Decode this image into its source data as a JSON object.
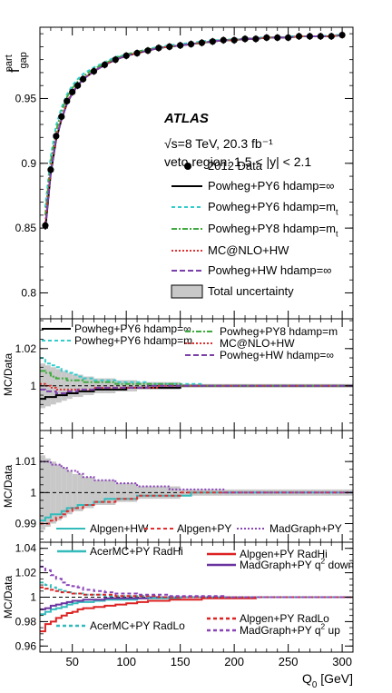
{
  "chart_data": [
    {
      "type": "line",
      "ylabel": "f",
      "ylabel_sup": "part",
      "ylabel_sub": "gap",
      "xlim": [
        20,
        310
      ],
      "ylim": [
        0.78,
        1.005
      ],
      "yticks": [
        "0.8",
        "0.85",
        "0.9",
        "0.95"
      ],
      "atlas_label": "ATLAS",
      "energy_label": "√s=8 TeV, 20.3 fb⁻¹",
      "region_label": "veto region: 1.5 < |y| < 2.1",
      "legend": [
        "2012 Data",
        "Powheg+PY6 hdamp=∞",
        "Powheg+PY6 hdamp=m",
        "Powheg+PY8 hdamp=m",
        "MC@NLO+HW",
        "Powheg+HW hdamp=∞",
        "Total uncertainty"
      ],
      "legend_subscript": "t",
      "x": [
        25,
        30,
        35,
        40,
        45,
        50,
        55,
        60,
        70,
        80,
        90,
        100,
        110,
        120,
        130,
        140,
        150,
        160,
        170,
        180,
        190,
        200,
        210,
        220,
        230,
        240,
        250,
        260,
        270,
        280,
        290,
        300
      ],
      "series": [
        {
          "name": "2012 Data",
          "color": "#000000",
          "values": [
            0.852,
            0.895,
            0.921,
            0.936,
            0.948,
            0.955,
            0.96,
            0.965,
            0.971,
            0.976,
            0.98,
            0.983,
            0.985,
            0.987,
            0.989,
            0.99,
            0.991,
            0.992,
            0.993,
            0.994,
            0.995,
            0.995,
            0.996,
            0.996,
            0.997,
            0.997,
            0.997,
            0.998,
            0.998,
            0.998,
            0.998,
            0.999
          ]
        },
        {
          "name": "Powheg+PY6 hdamp=∞",
          "color": "#000000",
          "values": [
            0.849,
            0.892,
            0.918,
            0.934,
            0.946,
            0.954,
            0.96,
            0.965,
            0.971,
            0.976,
            0.98,
            0.983,
            0.985,
            0.987,
            0.989,
            0.99,
            0.991,
            0.992,
            0.993,
            0.994,
            0.995,
            0.995,
            0.996,
            0.996,
            0.997,
            0.997,
            0.997,
            0.998,
            0.998,
            0.998,
            0.998,
            0.999
          ]
        },
        {
          "name": "Powheg+PY6 hdamp=m",
          "color": "#33cccc",
          "values": [
            0.866,
            0.905,
            0.929,
            0.943,
            0.953,
            0.96,
            0.965,
            0.969,
            0.974,
            0.978,
            0.982,
            0.984,
            0.986,
            0.988,
            0.99,
            0.991,
            0.992,
            0.993,
            0.994,
            0.995,
            0.995,
            0.996,
            0.996,
            0.997,
            0.997,
            0.997,
            0.998,
            0.998,
            0.998,
            0.998,
            0.999,
            0.999
          ]
        },
        {
          "name": "Powheg+PY8 hdamp=m",
          "color": "#3faa3f",
          "values": [
            0.86,
            0.901,
            0.925,
            0.94,
            0.951,
            0.958,
            0.963,
            0.967,
            0.973,
            0.977,
            0.981,
            0.984,
            0.986,
            0.988,
            0.989,
            0.99,
            0.991,
            0.992,
            0.993,
            0.994,
            0.995,
            0.995,
            0.996,
            0.996,
            0.997,
            0.997,
            0.997,
            0.998,
            0.998,
            0.998,
            0.998,
            0.999
          ]
        },
        {
          "name": "MC@NLO+HW",
          "color": "#e03030",
          "values": [
            0.854,
            0.895,
            0.92,
            0.935,
            0.947,
            0.955,
            0.96,
            0.965,
            0.971,
            0.976,
            0.98,
            0.983,
            0.985,
            0.987,
            0.989,
            0.99,
            0.991,
            0.992,
            0.993,
            0.994,
            0.995,
            0.995,
            0.996,
            0.996,
            0.997,
            0.997,
            0.997,
            0.998,
            0.998,
            0.998,
            0.998,
            0.999
          ]
        },
        {
          "name": "Powheg+HW hdamp=∞",
          "color": "#7a3fa8",
          "values": [
            0.851,
            0.893,
            0.919,
            0.934,
            0.946,
            0.954,
            0.96,
            0.965,
            0.971,
            0.976,
            0.98,
            0.983,
            0.985,
            0.987,
            0.989,
            0.99,
            0.991,
            0.992,
            0.993,
            0.994,
            0.995,
            0.995,
            0.996,
            0.996,
            0.997,
            0.997,
            0.997,
            0.998,
            0.998,
            0.998,
            0.998,
            0.999
          ]
        }
      ]
    },
    {
      "type": "line",
      "ylabel": "MC/Data",
      "ylim": [
        0.976,
        1.036
      ],
      "yticks": [
        "1",
        "1.02"
      ],
      "legend": [
        "Powheg+PY6 hdamp=∞",
        "Powheg+PY6 hdamp=m",
        "Powheg+PY8 hdamp=m",
        "MC@NLO+HW",
        "Powheg+HW  hdamp=∞"
      ],
      "bin_edges": [
        20,
        25,
        30,
        35,
        40,
        45,
        50,
        55,
        60,
        70,
        80,
        90,
        100,
        110,
        120,
        130,
        140,
        150,
        160,
        170,
        180,
        190,
        200,
        210,
        220,
        230,
        240,
        250,
        260,
        270,
        280,
        290,
        300,
        310
      ],
      "uncertainty": [
        0.012,
        0.011,
        0.01,
        0.009,
        0.008,
        0.007,
        0.006,
        0.006,
        0.005,
        0.004,
        0.004,
        0.003,
        0.003,
        0.002,
        0.002,
        0.002,
        0.002,
        0.001,
        0.001,
        0.001,
        0.001,
        0.001,
        0.001,
        0.001,
        0.001,
        0.001,
        0.001,
        0.001,
        0.001,
        0.001,
        0.001,
        0.001,
        0.001
      ],
      "series": [
        {
          "name": "Powheg+PY6 hdamp=∞",
          "color": "#000000",
          "values": [
            0.993,
            0.994,
            0.994,
            0.995,
            0.995,
            0.996,
            0.996,
            0.997,
            0.997,
            0.998,
            0.998,
            0.998,
            0.999,
            0.999,
            0.999,
            0.999,
            0.999,
            1.0,
            1.0,
            1.0,
            1.0,
            1.0,
            1.0,
            1.0,
            1.0,
            1.0,
            1.0,
            1.0,
            1.0,
            1.0,
            1.0,
            1.0,
            1.0
          ]
        },
        {
          "name": "Powheg+PY6 hdamp=m",
          "color": "#33cccc",
          "values": [
            1.015,
            1.012,
            1.011,
            1.01,
            1.008,
            1.007,
            1.006,
            1.005,
            1.004,
            1.003,
            1.003,
            1.002,
            1.002,
            1.002,
            1.001,
            1.001,
            1.001,
            1.001,
            1.001,
            1.0,
            1.0,
            1.0,
            1.0,
            1.0,
            1.0,
            1.0,
            1.0,
            1.0,
            1.0,
            1.0,
            1.0,
            1.0,
            1.0
          ]
        },
        {
          "name": "Powheg+PY8 hdamp=m",
          "color": "#3faa3f",
          "values": [
            1.008,
            1.007,
            1.005,
            1.004,
            1.004,
            1.003,
            1.003,
            1.003,
            1.002,
            1.002,
            1.002,
            1.001,
            1.001,
            1.001,
            1.001,
            1.001,
            1.001,
            1.0,
            1.0,
            1.0,
            1.0,
            1.0,
            1.0,
            1.0,
            1.0,
            1.0,
            1.0,
            1.0,
            1.0,
            1.0,
            1.0,
            1.0,
            1.0
          ]
        },
        {
          "name": "MC@NLO+HW",
          "color": "#e03030",
          "values": [
            1.001,
            1.0,
            0.999,
            0.998,
            0.998,
            0.998,
            0.998,
            0.998,
            0.998,
            0.999,
            0.999,
            0.999,
            0.999,
            0.999,
            0.999,
            1.0,
            1.0,
            1.0,
            1.0,
            1.0,
            1.0,
            1.0,
            1.0,
            1.0,
            1.0,
            1.0,
            1.0,
            1.0,
            1.0,
            1.0,
            1.0,
            1.0,
            1.0
          ]
        },
        {
          "name": "Powheg+HW  hdamp=∞",
          "color": "#7a3fa8",
          "values": [
            0.998,
            0.997,
            0.997,
            0.996,
            0.996,
            0.997,
            0.997,
            0.998,
            0.998,
            0.999,
            0.999,
            0.999,
            0.999,
            0.999,
            1.0,
            1.0,
            1.0,
            1.0,
            1.0,
            1.0,
            1.0,
            1.0,
            1.0,
            1.0,
            1.0,
            1.0,
            1.0,
            1.0,
            1.0,
            1.0,
            1.0,
            1.0,
            1.0
          ]
        }
      ]
    },
    {
      "type": "line",
      "ylabel": "MC/Data",
      "ylim": [
        0.984,
        1.02
      ],
      "yticks": [
        "0.99",
        "1",
        "1.01"
      ],
      "legend": [
        "Alpgen+HW",
        "Alpgen+PY",
        "MadGraph+PY"
      ],
      "bin_edges": [
        20,
        25,
        30,
        35,
        40,
        45,
        50,
        55,
        60,
        70,
        80,
        90,
        100,
        110,
        120,
        130,
        140,
        150,
        160,
        170,
        180,
        190,
        200,
        210,
        220,
        230,
        240,
        250,
        260,
        270,
        280,
        290,
        300,
        310
      ],
      "uncertainty": [
        0.012,
        0.011,
        0.01,
        0.009,
        0.008,
        0.007,
        0.006,
        0.006,
        0.005,
        0.004,
        0.004,
        0.003,
        0.003,
        0.002,
        0.002,
        0.002,
        0.002,
        0.001,
        0.001,
        0.001,
        0.001,
        0.001,
        0.001,
        0.001,
        0.001,
        0.001,
        0.001,
        0.001,
        0.001,
        0.001,
        0.001,
        0.001,
        0.001
      ],
      "series": [
        {
          "name": "Alpgen+HW",
          "color": "#33bbbb",
          "values": [
            0.991,
            0.992,
            0.993,
            0.993,
            0.994,
            0.995,
            0.995,
            0.996,
            0.996,
            0.997,
            0.998,
            0.998,
            0.998,
            0.999,
            0.999,
            0.999,
            0.999,
            0.999,
            1.0,
            1.0,
            1.0,
            1.0,
            1.0,
            1.0,
            1.0,
            1.0,
            1.0,
            1.0,
            1.0,
            1.0,
            1.0,
            1.0,
            1.0
          ]
        },
        {
          "name": "Alpgen+PY",
          "color": "#e03030",
          "values": [
            0.99,
            0.99,
            0.991,
            0.992,
            0.993,
            0.994,
            0.995,
            0.995,
            0.996,
            0.997,
            0.997,
            0.998,
            0.998,
            0.999,
            0.999,
            0.999,
            0.999,
            1.0,
            1.0,
            1.0,
            1.0,
            1.0,
            1.0,
            1.0,
            1.0,
            1.0,
            1.0,
            1.0,
            1.0,
            1.0,
            1.0,
            1.0,
            1.0
          ]
        },
        {
          "name": "MadGraph+PY",
          "color": "#8a44b8",
          "values": [
            1.01,
            1.01,
            1.009,
            1.009,
            1.008,
            1.007,
            1.007,
            1.006,
            1.005,
            1.004,
            1.004,
            1.003,
            1.003,
            1.002,
            1.002,
            1.002,
            1.001,
            1.001,
            1.001,
            1.001,
            1.001,
            1.0,
            1.0,
            1.0,
            1.0,
            1.0,
            1.0,
            1.0,
            1.0,
            1.0,
            1.0,
            1.0,
            1.0
          ]
        }
      ]
    },
    {
      "type": "line",
      "ylabel": "MC/Data",
      "xlabel": "Q",
      "xlabel_sub": "0",
      "xlabel_unit": " [GeV]",
      "xticks": [
        "50",
        "100",
        "150",
        "200",
        "250",
        "300"
      ],
      "ylim": [
        0.955,
        1.045
      ],
      "yticks": [
        "0.96",
        "0.98",
        "1",
        "1.02",
        "1.04"
      ],
      "legend": [
        "AcerMC+PY RadHi",
        "Alpgen+PY RadHi",
        "MadGraph+PY q",
        "AcerMC+PY RadLo",
        "Alpgen+PY RadLo",
        "MadGraph+PY q"
      ],
      "legend_sup": "2",
      "legend_suffix": [
        " down",
        " up"
      ],
      "bin_edges": [
        20,
        25,
        30,
        35,
        40,
        45,
        50,
        55,
        60,
        70,
        80,
        90,
        100,
        110,
        120,
        130,
        140,
        150,
        160,
        170,
        180,
        190,
        200,
        210,
        220,
        230,
        240,
        250,
        260,
        270,
        280,
        290,
        300,
        310
      ],
      "series": [
        {
          "name": "AcerMC+PY RadHi",
          "color": "#33bbbb",
          "values": [
            0.986,
            0.988,
            0.99,
            0.991,
            0.992,
            0.994,
            0.995,
            0.996,
            0.996,
            0.997,
            0.998,
            0.998,
            0.998,
            0.999,
            0.999,
            0.999,
            0.999,
            1.0,
            1.0,
            1.0,
            1.0,
            1.0,
            1.0,
            1.0,
            1.0,
            1.0,
            1.0,
            1.0,
            1.0,
            1.0,
            1.0,
            1.0,
            1.0
          ]
        },
        {
          "name": "Alpgen+PY RadHi",
          "color": "#dd2222",
          "values": [
            0.972,
            0.978,
            0.98,
            0.983,
            0.985,
            0.987,
            0.988,
            0.99,
            0.991,
            0.992,
            0.993,
            0.994,
            0.995,
            0.996,
            0.997,
            0.997,
            0.998,
            0.998,
            0.998,
            0.999,
            0.999,
            0.999,
            0.999,
            0.999,
            1.0,
            1.0,
            1.0,
            1.0,
            1.0,
            1.0,
            1.0,
            1.0,
            1.0
          ]
        },
        {
          "name": "MadGraph+PY q down",
          "color": "#6b33a0",
          "values": [
            0.99,
            0.991,
            0.993,
            0.994,
            0.995,
            0.996,
            0.997,
            0.997,
            0.998,
            0.998,
            0.999,
            0.999,
            0.999,
            0.999,
            1.0,
            1.0,
            1.0,
            1.0,
            1.0,
            1.0,
            1.0,
            1.0,
            1.0,
            1.0,
            1.0,
            1.0,
            1.0,
            1.0,
            1.0,
            1.0,
            1.0,
            1.0,
            1.0
          ]
        },
        {
          "name": "AcerMC+PY RadLo",
          "color": "#33bbbb",
          "values": [
            1.012,
            1.01,
            1.008,
            1.006,
            1.005,
            1.004,
            1.003,
            1.003,
            1.002,
            1.002,
            1.001,
            1.001,
            1.001,
            1.001,
            1.0,
            1.0,
            1.0,
            1.0,
            1.0,
            1.0,
            1.0,
            1.0,
            1.0,
            1.0,
            1.0,
            1.0,
            1.0,
            1.0,
            1.0,
            1.0,
            1.0,
            1.0,
            1.0
          ]
        },
        {
          "name": "Alpgen+PY RadLo",
          "color": "#dd2222",
          "values": [
            1.008,
            1.007,
            1.006,
            1.005,
            1.004,
            1.004,
            1.003,
            1.003,
            1.002,
            1.002,
            1.002,
            1.001,
            1.001,
            1.001,
            1.001,
            1.0,
            1.0,
            1.0,
            1.0,
            1.0,
            1.0,
            1.0,
            1.0,
            1.0,
            1.0,
            1.0,
            1.0,
            1.0,
            1.0,
            1.0,
            1.0,
            1.0,
            1.0
          ]
        },
        {
          "name": "MadGraph+PY q up",
          "color": "#8a44b8",
          "values": [
            1.025,
            1.022,
            1.018,
            1.015,
            1.012,
            1.01,
            1.009,
            1.008,
            1.006,
            1.005,
            1.004,
            1.003,
            1.003,
            1.002,
            1.002,
            1.002,
            1.001,
            1.001,
            1.001,
            1.001,
            1.001,
            1.0,
            1.0,
            1.0,
            1.0,
            1.0,
            1.0,
            1.0,
            1.0,
            1.0,
            1.0,
            1.0,
            1.0
          ]
        }
      ]
    }
  ]
}
